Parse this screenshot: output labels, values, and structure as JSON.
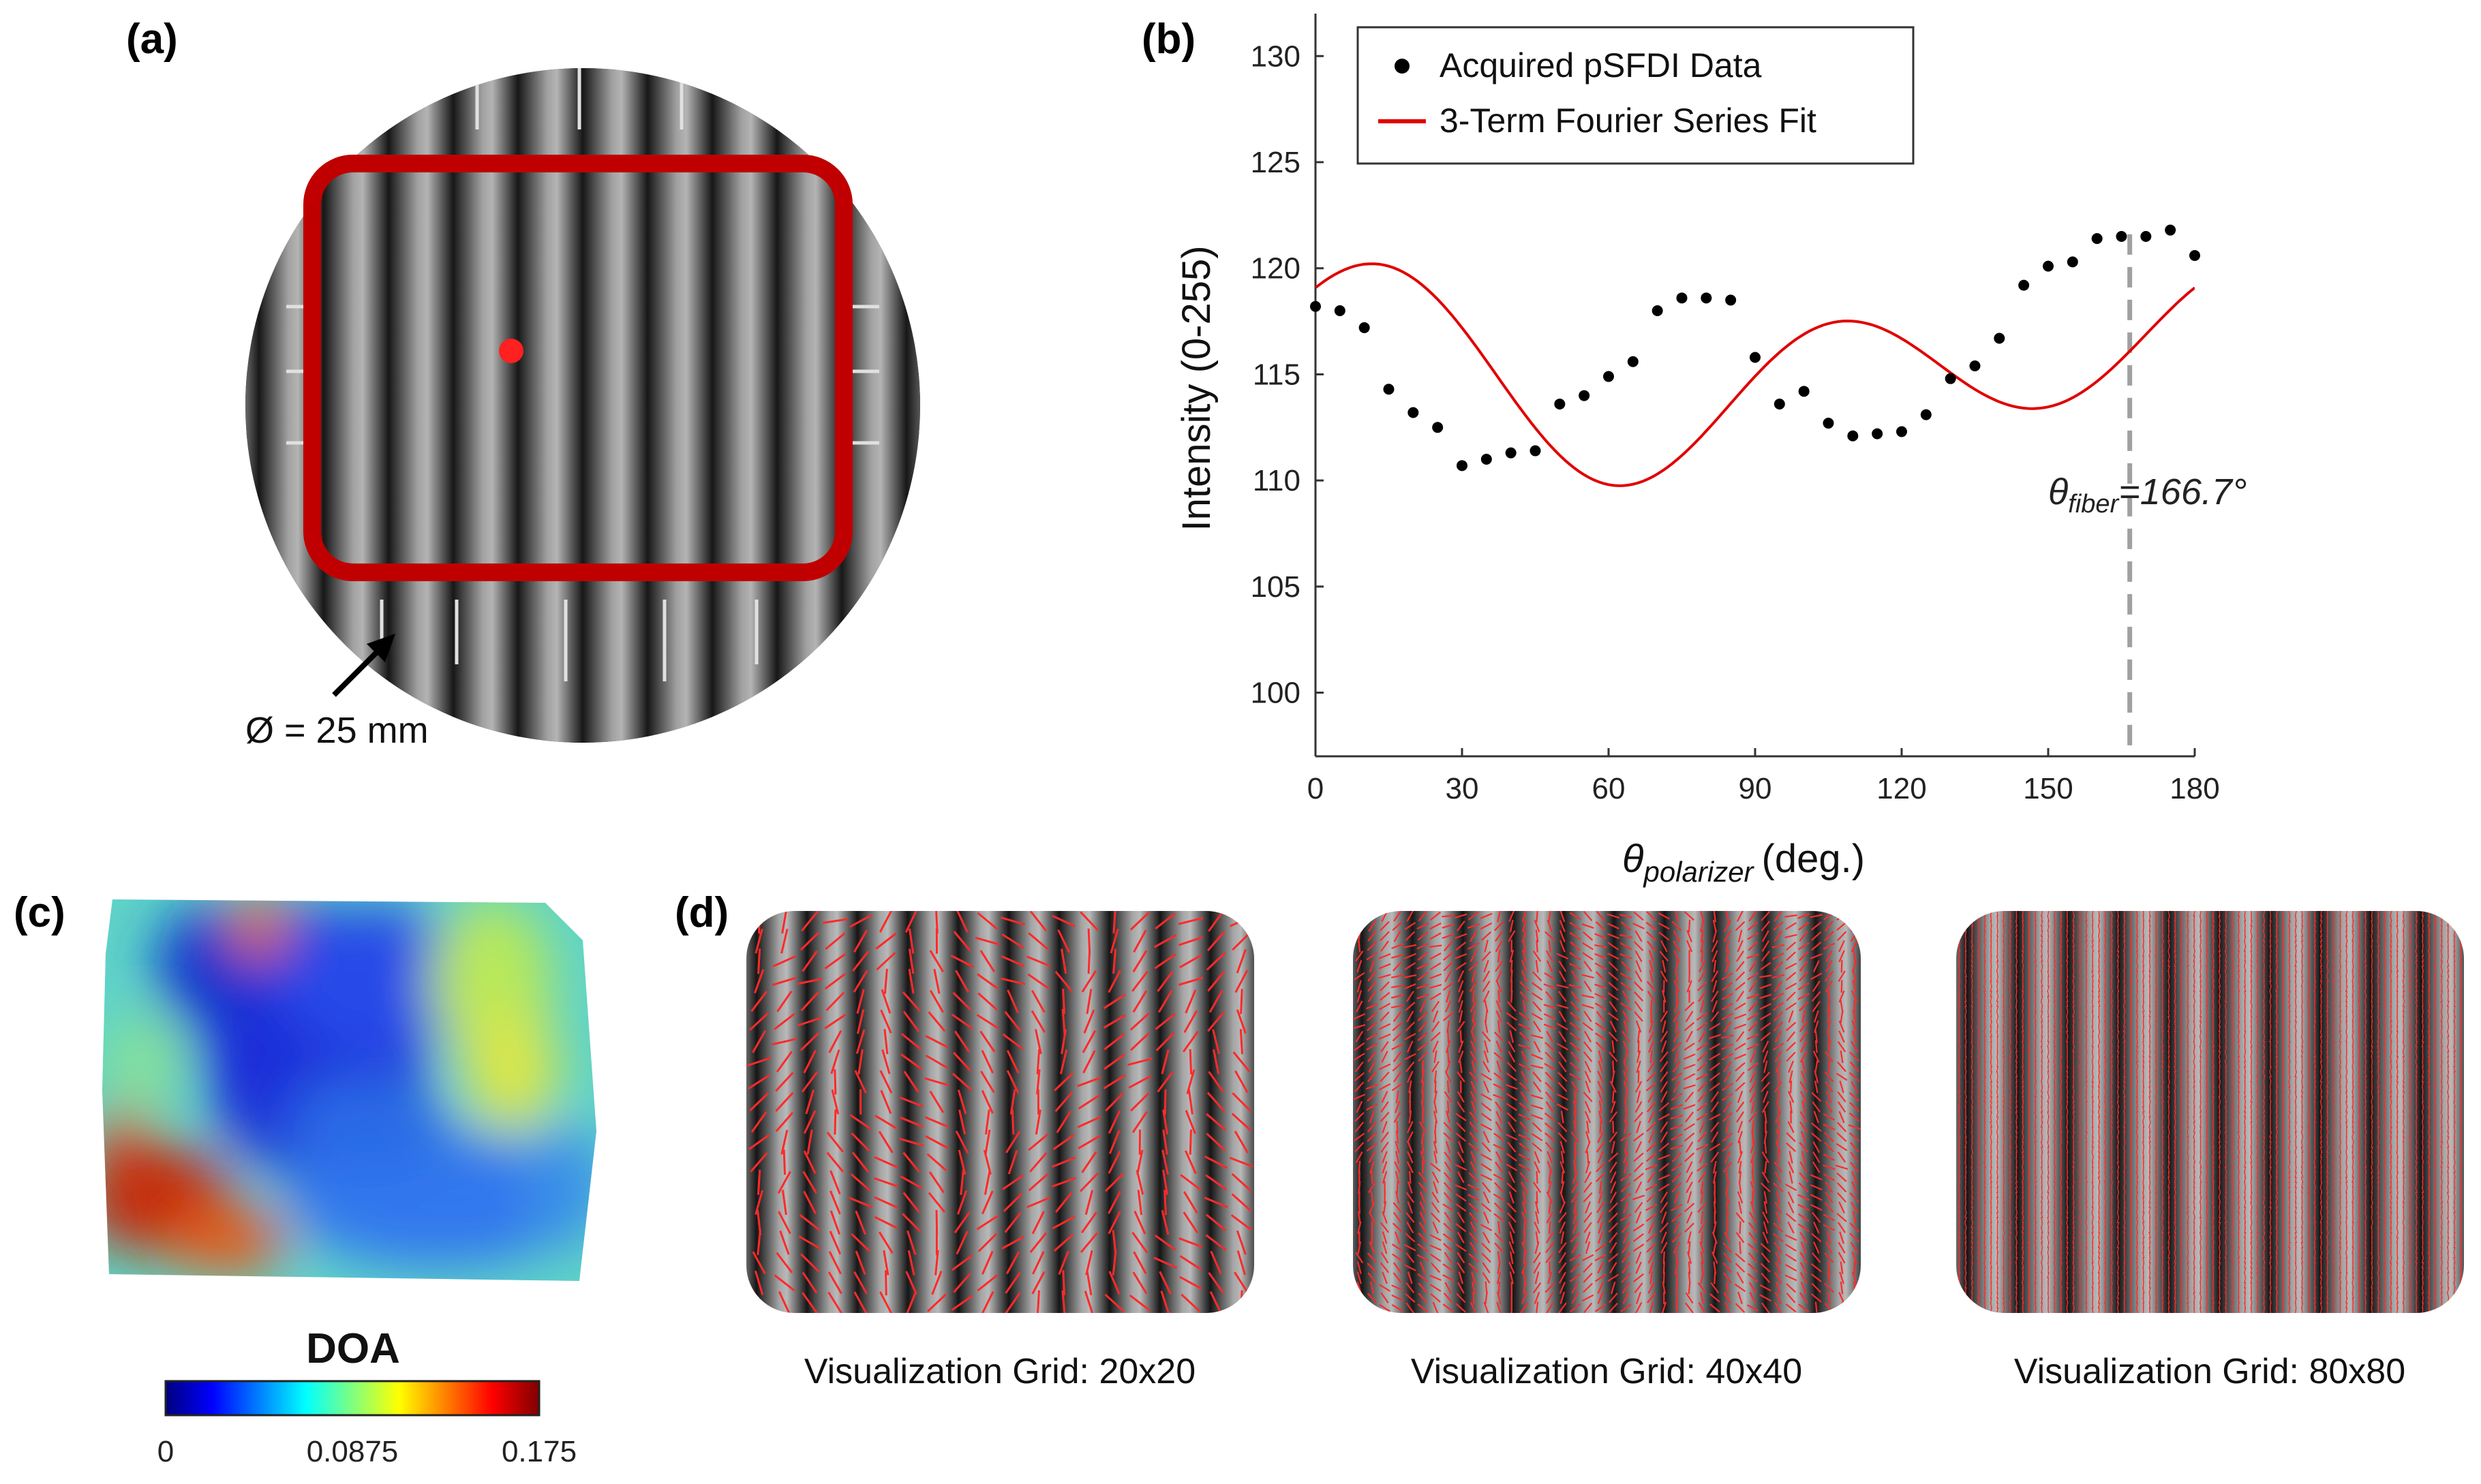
{
  "panel_labels": {
    "a": "(a)",
    "b": "(b)",
    "c": "(c)",
    "d": "(d)"
  },
  "panel_a": {
    "diameter_label": "Ø = 25 mm",
    "roi_color": "#c00000",
    "marker_color": "#ff2020"
  },
  "chart_data": {
    "type": "scatter",
    "title": "",
    "xlabel_main": "θ",
    "xlabel_sub": "polarizer",
    "xlabel_unit": "(deg.)",
    "ylabel": "Intensity (0-255)",
    "xlim": [
      0,
      180
    ],
    "ylim": [
      97,
      132
    ],
    "xticks": [
      0,
      30,
      60,
      90,
      120,
      150,
      180
    ],
    "yticks": [
      100,
      105,
      110,
      115,
      120,
      125,
      130
    ],
    "legend_position": "top-left",
    "series": [
      {
        "name": "Acquired pSFDI Data",
        "kind": "points",
        "color": "#000000",
        "x": [
          0,
          5,
          10,
          15,
          20,
          25,
          30,
          35,
          40,
          45,
          50,
          55,
          60,
          65,
          70,
          75,
          80,
          85,
          90,
          95,
          100,
          105,
          110,
          115,
          120,
          125,
          130,
          135,
          140,
          145,
          150,
          155,
          160,
          165,
          170,
          175,
          180
        ],
        "y": [
          118.2,
          118.0,
          117.2,
          114.3,
          113.2,
          112.5,
          110.7,
          111.0,
          111.3,
          111.4,
          113.6,
          114.0,
          114.9,
          115.6,
          118.0,
          118.6,
          118.6,
          118.5,
          115.8,
          113.6,
          114.2,
          112.7,
          112.1,
          112.2,
          112.3,
          113.1,
          114.8,
          115.4,
          116.7,
          119.2,
          120.1,
          120.3,
          121.4,
          121.5,
          121.5,
          121.8,
          120.6
        ]
      },
      {
        "name": "3-Term Fourier Series Fit",
        "kind": "line",
        "color": "#e00000",
        "model": {
          "a0": 115.19,
          "a2": 2.087,
          "b2": -0.911,
          "a4": 1.806,
          "b4": 3.063
        }
      }
    ],
    "vline": {
      "x": 166.7,
      "color": "#a0a0a0"
    },
    "annotation": {
      "symbol": "θ",
      "subscript": "fiber",
      "value": "=166.7°"
    }
  },
  "panel_c": {
    "colorbar_title": "DOA",
    "colorbar_ticks": [
      "0",
      "0.0875",
      "0.175"
    ]
  },
  "panel_d": {
    "line_color": "#ff2a2a",
    "grids": [
      {
        "caption": "Visualization Grid: 20x20",
        "n": 20
      },
      {
        "caption": "Visualization Grid: 40x40",
        "n": 40
      },
      {
        "caption": "Visualization Grid: 80x80",
        "n": 80
      }
    ]
  }
}
